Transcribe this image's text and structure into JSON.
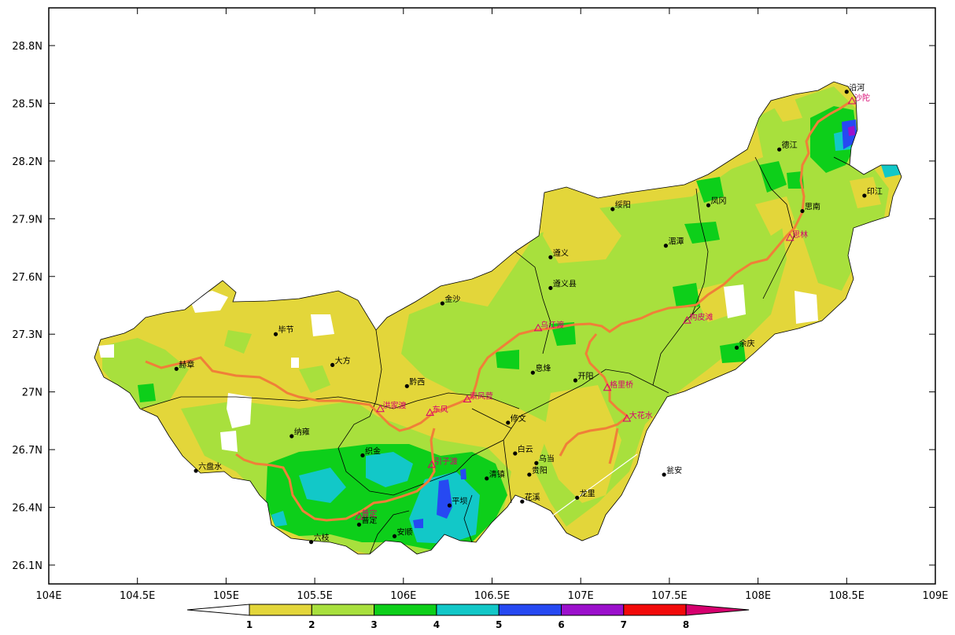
{
  "map": {
    "x_ticks": [
      "104E",
      "104.5E",
      "105E",
      "105.5E",
      "106E",
      "106.5E",
      "107E",
      "107.5E",
      "108E",
      "108.5E",
      "109E"
    ],
    "y_ticks": [
      "28.8N",
      "28.5N",
      "28.2N",
      "27.9N",
      "27.6N",
      "27.3N",
      "27N",
      "26.7N",
      "26.4N",
      "26.1N"
    ],
    "cities": [
      {
        "name": "沿河",
        "lon": 108.5,
        "lat": 28.56
      },
      {
        "name": "德江",
        "lon": 108.12,
        "lat": 28.26
      },
      {
        "name": "印江",
        "lon": 108.6,
        "lat": 28.02
      },
      {
        "name": "思南",
        "lon": 108.25,
        "lat": 27.94
      },
      {
        "name": "凤冈",
        "lon": 107.72,
        "lat": 27.97
      },
      {
        "name": "绥阳",
        "lon": 107.18,
        "lat": 27.95
      },
      {
        "name": "湄潭",
        "lon": 107.48,
        "lat": 27.76
      },
      {
        "name": "遵义",
        "lon": 106.83,
        "lat": 27.7
      },
      {
        "name": "遵义县",
        "lon": 106.83,
        "lat": 27.54
      },
      {
        "name": "金沙",
        "lon": 106.22,
        "lat": 27.46
      },
      {
        "name": "毕节",
        "lon": 105.28,
        "lat": 27.3
      },
      {
        "name": "大方",
        "lon": 105.6,
        "lat": 27.14
      },
      {
        "name": "赫章",
        "lon": 104.72,
        "lat": 27.12
      },
      {
        "name": "黔西",
        "lon": 106.02,
        "lat": 27.03
      },
      {
        "name": "息烽",
        "lon": 106.73,
        "lat": 27.1
      },
      {
        "name": "开阳",
        "lon": 106.97,
        "lat": 27.06
      },
      {
        "name": "余庆",
        "lon": 107.88,
        "lat": 27.23
      },
      {
        "name": "纳雍",
        "lon": 105.37,
        "lat": 26.77
      },
      {
        "name": "修文",
        "lon": 106.59,
        "lat": 26.84
      },
      {
        "name": "织金",
        "lon": 105.77,
        "lat": 26.67
      },
      {
        "name": "白云",
        "lon": 106.63,
        "lat": 26.68
      },
      {
        "name": "乌当",
        "lon": 106.75,
        "lat": 26.63
      },
      {
        "name": "贵阳",
        "lon": 106.71,
        "lat": 26.57
      },
      {
        "name": "清镇",
        "lon": 106.47,
        "lat": 26.55
      },
      {
        "name": "瓮安",
        "lon": 107.47,
        "lat": 26.57
      },
      {
        "name": "六盘水",
        "lon": 104.83,
        "lat": 26.59
      },
      {
        "name": "平坝",
        "lon": 106.26,
        "lat": 26.41
      },
      {
        "name": "花溪",
        "lon": 106.67,
        "lat": 26.43
      },
      {
        "name": "龙里",
        "lon": 106.98,
        "lat": 26.45
      },
      {
        "name": "普定",
        "lon": 105.75,
        "lat": 26.31
      },
      {
        "name": "六枝",
        "lon": 105.48,
        "lat": 26.22
      },
      {
        "name": "安顺",
        "lon": 105.95,
        "lat": 26.25
      }
    ],
    "stations": [
      {
        "name": "沙陀",
        "lon": 108.53,
        "lat": 28.51
      },
      {
        "name": "思林",
        "lon": 108.18,
        "lat": 27.8
      },
      {
        "name": "构皮滩",
        "lon": 107.6,
        "lat": 27.37
      },
      {
        "name": "乌江渡",
        "lon": 106.76,
        "lat": 27.33
      },
      {
        "name": "洪家渡",
        "lon": 105.87,
        "lat": 26.91
      },
      {
        "name": "东风",
        "lon": 106.15,
        "lat": 26.89
      },
      {
        "name": "索风营",
        "lon": 106.36,
        "lat": 26.96
      },
      {
        "name": "格里桥",
        "lon": 107.15,
        "lat": 27.02
      },
      {
        "name": "大花水",
        "lon": 107.26,
        "lat": 26.86
      },
      {
        "name": "引子渡",
        "lon": 106.16,
        "lat": 26.62
      },
      {
        "name": "普定",
        "lon": 105.75,
        "lat": 26.35
      }
    ]
  },
  "legend": {
    "labels": [
      "1",
      "2",
      "3",
      "4",
      "5",
      "6",
      "7",
      "8"
    ],
    "colors": [
      "#ffffff",
      "#e3d63a",
      "#a8e03d",
      "#0dcf1a",
      "#12c8c8",
      "#2649f2",
      "#9b10cc",
      "#f20a0a",
      "#d6006e"
    ]
  },
  "colors": {
    "river": "#f07f38",
    "station": "#d6006e",
    "boundary": "#000000"
  }
}
